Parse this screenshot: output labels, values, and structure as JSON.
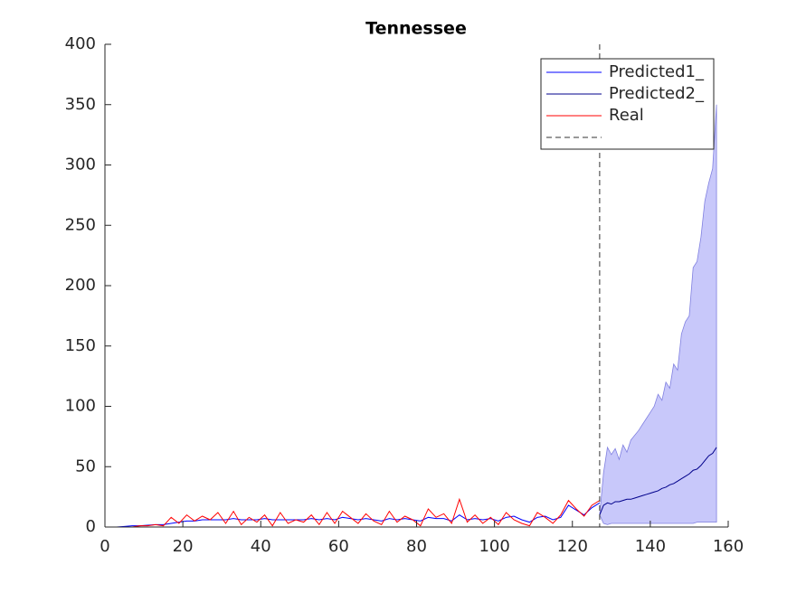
{
  "chart_data": {
    "type": "line",
    "title": "Tennessee",
    "xlim": [
      0,
      160
    ],
    "xticks": [
      0,
      20,
      40,
      60,
      80,
      100,
      120,
      140,
      160
    ],
    "ylim": [
      0,
      400
    ],
    "yticks": [
      0,
      50,
      100,
      150,
      200,
      250,
      300,
      350,
      400
    ],
    "legend": "top-right",
    "series": [
      {
        "name": "Predicted1_",
        "color": "#0000ff",
        "x": [
          1,
          3,
          5,
          7,
          9,
          11,
          13,
          15,
          17,
          19,
          21,
          23,
          25,
          27,
          29,
          31,
          33,
          35,
          37,
          39,
          41,
          43,
          45,
          47,
          49,
          51,
          53,
          55,
          57,
          59,
          61,
          63,
          65,
          67,
          69,
          71,
          73,
          75,
          77,
          79,
          81,
          83,
          85,
          87,
          89,
          91,
          93,
          95,
          97,
          99,
          101,
          103,
          105,
          107,
          109,
          111,
          113,
          115,
          117,
          119,
          121,
          123,
          125,
          127
        ],
        "values": [
          0,
          0,
          0.5,
          1,
          1,
          1.5,
          2,
          2,
          3,
          4,
          5,
          5,
          6,
          6,
          6,
          6,
          7,
          6,
          6,
          6,
          7,
          6,
          6,
          6,
          6,
          6,
          7,
          6,
          7,
          6,
          8,
          7,
          6,
          7,
          6,
          5,
          7,
          6,
          7,
          6,
          5,
          8,
          7,
          7,
          5,
          10,
          6,
          7,
          6,
          7,
          5,
          8,
          9,
          6,
          4,
          8,
          9,
          6,
          8,
          18,
          14,
          10,
          16,
          20
        ]
      },
      {
        "name": "Predicted2_",
        "color": "#00008b",
        "x": [
          127,
          128,
          129,
          130,
          131,
          132,
          133,
          134,
          135,
          136,
          137,
          138,
          139,
          140,
          141,
          142,
          143,
          144,
          145,
          146,
          147,
          148,
          149,
          150,
          151,
          152,
          153,
          154,
          155,
          156,
          157
        ],
        "values": [
          10,
          18,
          20,
          19,
          21,
          21,
          22,
          23,
          23,
          24,
          25,
          26,
          27,
          28,
          29,
          30,
          32,
          33,
          35,
          36,
          38,
          40,
          42,
          44,
          47,
          48,
          51,
          55,
          59,
          61,
          66
        ]
      },
      {
        "name": "Real",
        "color": "#ff0000",
        "x": [
          1,
          3,
          5,
          7,
          9,
          11,
          13,
          15,
          17,
          19,
          21,
          23,
          25,
          27,
          29,
          31,
          33,
          35,
          37,
          39,
          41,
          43,
          45,
          47,
          49,
          51,
          53,
          55,
          57,
          59,
          61,
          63,
          65,
          67,
          69,
          71,
          73,
          75,
          77,
          79,
          81,
          83,
          85,
          87,
          89,
          91,
          93,
          95,
          97,
          99,
          101,
          103,
          105,
          107,
          109,
          111,
          113,
          115,
          117,
          119,
          121,
          123,
          125,
          127
        ],
        "values": [
          0,
          0,
          0,
          0,
          1,
          1,
          2,
          1,
          8,
          3,
          10,
          5,
          9,
          6,
          12,
          3,
          13,
          2,
          8,
          4,
          10,
          1,
          12,
          3,
          6,
          4,
          10,
          2,
          12,
          3,
          13,
          8,
          3,
          11,
          5,
          2,
          13,
          4,
          9,
          6,
          1,
          15,
          8,
          11,
          3,
          23,
          4,
          10,
          3,
          8,
          2,
          12,
          6,
          3,
          1,
          12,
          8,
          3,
          10,
          22,
          15,
          9,
          18,
          22
        ]
      }
    ],
    "band": {
      "color": "#c8c8fa",
      "x": [
        127,
        128,
        129,
        130,
        131,
        132,
        133,
        134,
        135,
        136,
        137,
        138,
        139,
        140,
        141,
        142,
        143,
        144,
        145,
        146,
        147,
        148,
        149,
        150,
        151,
        152,
        153,
        154,
        155,
        156,
        157
      ],
      "upper": [
        10,
        45,
        66,
        60,
        65,
        56,
        68,
        62,
        72,
        76,
        80,
        85,
        90,
        95,
        100,
        110,
        105,
        120,
        115,
        135,
        130,
        160,
        170,
        175,
        215,
        220,
        240,
        270,
        285,
        297,
        350
      ],
      "lower": [
        10,
        3,
        2,
        3,
        3,
        3,
        3,
        3,
        3,
        3,
        3,
        3,
        3,
        3,
        3,
        3,
        3,
        3,
        3,
        3,
        3,
        3,
        3,
        3,
        3,
        4,
        4,
        4,
        4,
        4,
        4
      ]
    },
    "vline_x": 127
  }
}
